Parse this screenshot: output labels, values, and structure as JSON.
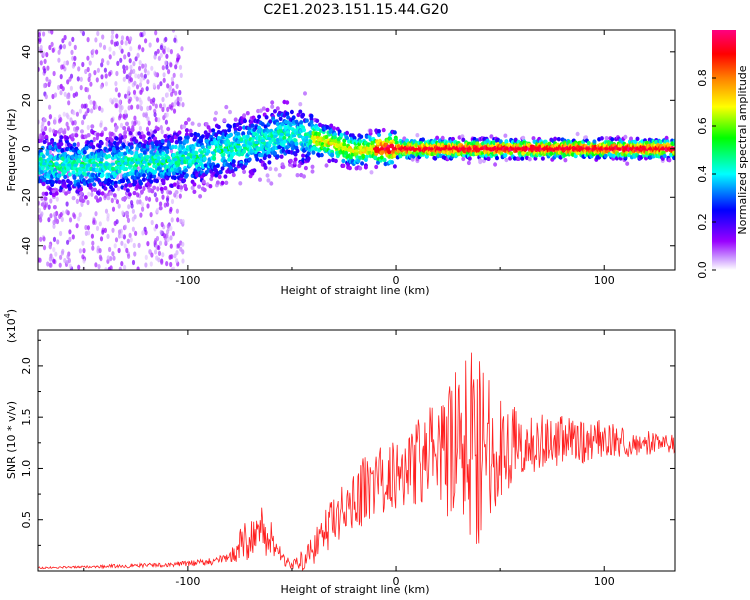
{
  "title": "C2E1.2023.151.15.44.G20",
  "chart_data": [
    {
      "type": "heatmap",
      "title": "C2E1.2023.151.15.44.G20",
      "xlabel": "Height of straight line (km)",
      "ylabel": "Frequency (Hz)",
      "xlim": [
        -172,
        134
      ],
      "ylim": [
        -50,
        49
      ],
      "xticks": [
        "-100",
        "0",
        "100"
      ],
      "yticks": [
        "-40",
        "-20",
        "0",
        "20",
        "40"
      ],
      "colorbar": {
        "label": "Normalized spectral amplitude",
        "range": [
          0,
          1
        ],
        "ticks": [
          "0.0",
          "0.2",
          "0.4",
          "0.6",
          "0.8"
        ],
        "colors": [
          "#ffffff",
          "#9900ff",
          "#0000ff",
          "#00ffff",
          "#00ff00",
          "#ffff00",
          "#ff8000",
          "#ff0000",
          "#ff0080"
        ]
      },
      "ridge": {
        "x": [
          -172,
          -150,
          -130,
          -110,
          -95,
          -80,
          -65,
          -55,
          -45,
          -38,
          -30,
          -20,
          -10,
          0,
          20,
          40,
          60,
          80,
          100,
          134
        ],
        "y": [
          -6,
          -7,
          -6,
          -5,
          -3,
          0,
          3,
          6,
          5,
          4,
          2,
          -1,
          0,
          0,
          0,
          0,
          0,
          0,
          0,
          0
        ]
      }
    },
    {
      "type": "line",
      "xlabel": "Height of straight line (km)",
      "ylabel": "SNR (10 * v/v)",
      "multiplier": "(x10",
      "multiplier_exp": "4",
      "multiplier_close": ")",
      "xlim": [
        -172,
        134
      ],
      "ylim": [
        0,
        2.35
      ],
      "xticks": [
        "-100",
        "0",
        "100"
      ],
      "yticks": [
        "0.5",
        "1.0",
        "1.5",
        "2.0"
      ],
      "series": [
        {
          "name": "SNR",
          "color": "#ff2020",
          "x": [
            -172,
            -150,
            -130,
            -110,
            -95,
            -80,
            -75,
            -70,
            -65,
            -60,
            -55,
            -50,
            -45,
            -40,
            -35,
            -30,
            -25,
            -20,
            -15,
            -10,
            -5,
            0,
            5,
            10,
            15,
            20,
            25,
            30,
            35,
            40,
            45,
            50,
            55,
            60,
            70,
            80,
            90,
            100,
            110,
            120,
            134
          ],
          "y": [
            0.03,
            0.04,
            0.05,
            0.06,
            0.08,
            0.12,
            0.25,
            0.35,
            0.4,
            0.3,
            0.15,
            0.06,
            0.1,
            0.2,
            0.35,
            0.5,
            0.6,
            0.7,
            0.8,
            0.85,
            0.9,
            0.95,
            1.0,
            1.05,
            1.1,
            1.1,
            1.15,
            1.2,
            1.3,
            1.25,
            1.2,
            1.2,
            1.25,
            1.2,
            1.25,
            1.3,
            1.25,
            1.3,
            1.25,
            1.25,
            1.25
          ],
          "noise": [
            0.01,
            0.01,
            0.02,
            0.02,
            0.03,
            0.05,
            0.15,
            0.25,
            0.25,
            0.2,
            0.1,
            0.05,
            0.1,
            0.15,
            0.2,
            0.25,
            0.25,
            0.3,
            0.35,
            0.35,
            0.35,
            0.35,
            0.4,
            0.45,
            0.5,
            0.55,
            0.65,
            0.8,
            1.0,
            1.0,
            0.7,
            0.5,
            0.45,
            0.35,
            0.3,
            0.25,
            0.2,
            0.18,
            0.15,
            0.12,
            0.1
          ]
        }
      ]
    }
  ]
}
